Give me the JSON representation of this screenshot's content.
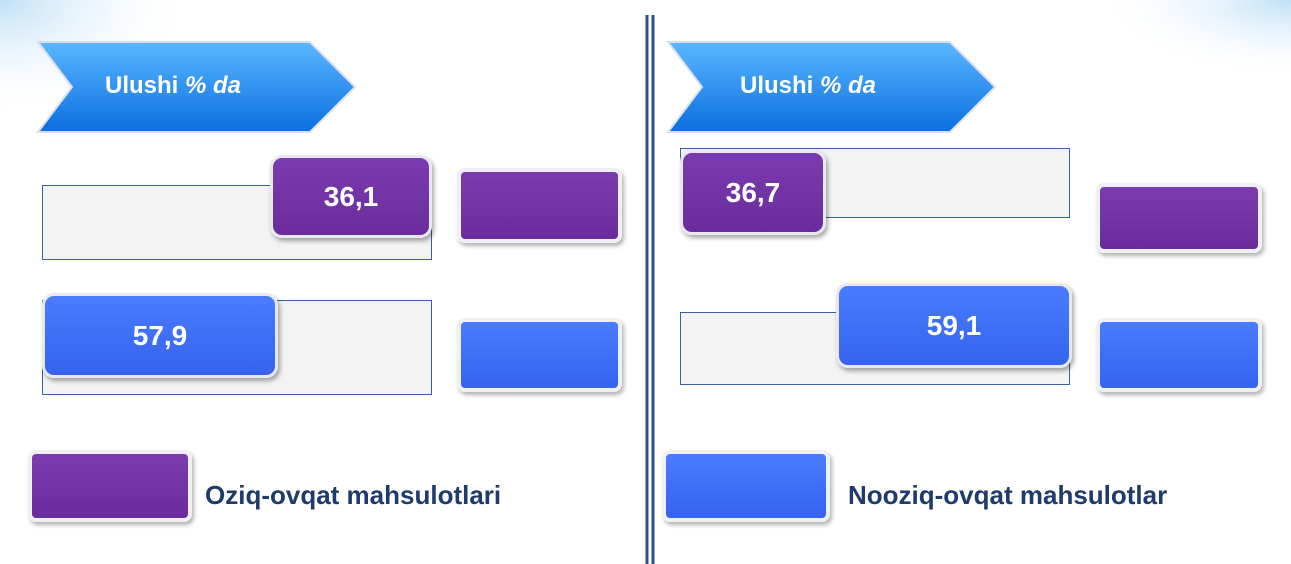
{
  "panels": [
    {
      "header": {
        "title": "Ulushi",
        "unit": "% da"
      },
      "items": [
        {
          "value": "36,1"
        },
        {
          "value": "57,9"
        }
      ]
    },
    {
      "header": {
        "title": "Ulushi",
        "unit": "% da"
      },
      "items": [
        {
          "value": "36,7"
        },
        {
          "value": "59,1"
        }
      ]
    }
  ],
  "legend": [
    {
      "label": "Oziq-ovqat mahsulotlari"
    },
    {
      "label": "Nooziq-ovqat mahsulotlar"
    }
  ]
}
